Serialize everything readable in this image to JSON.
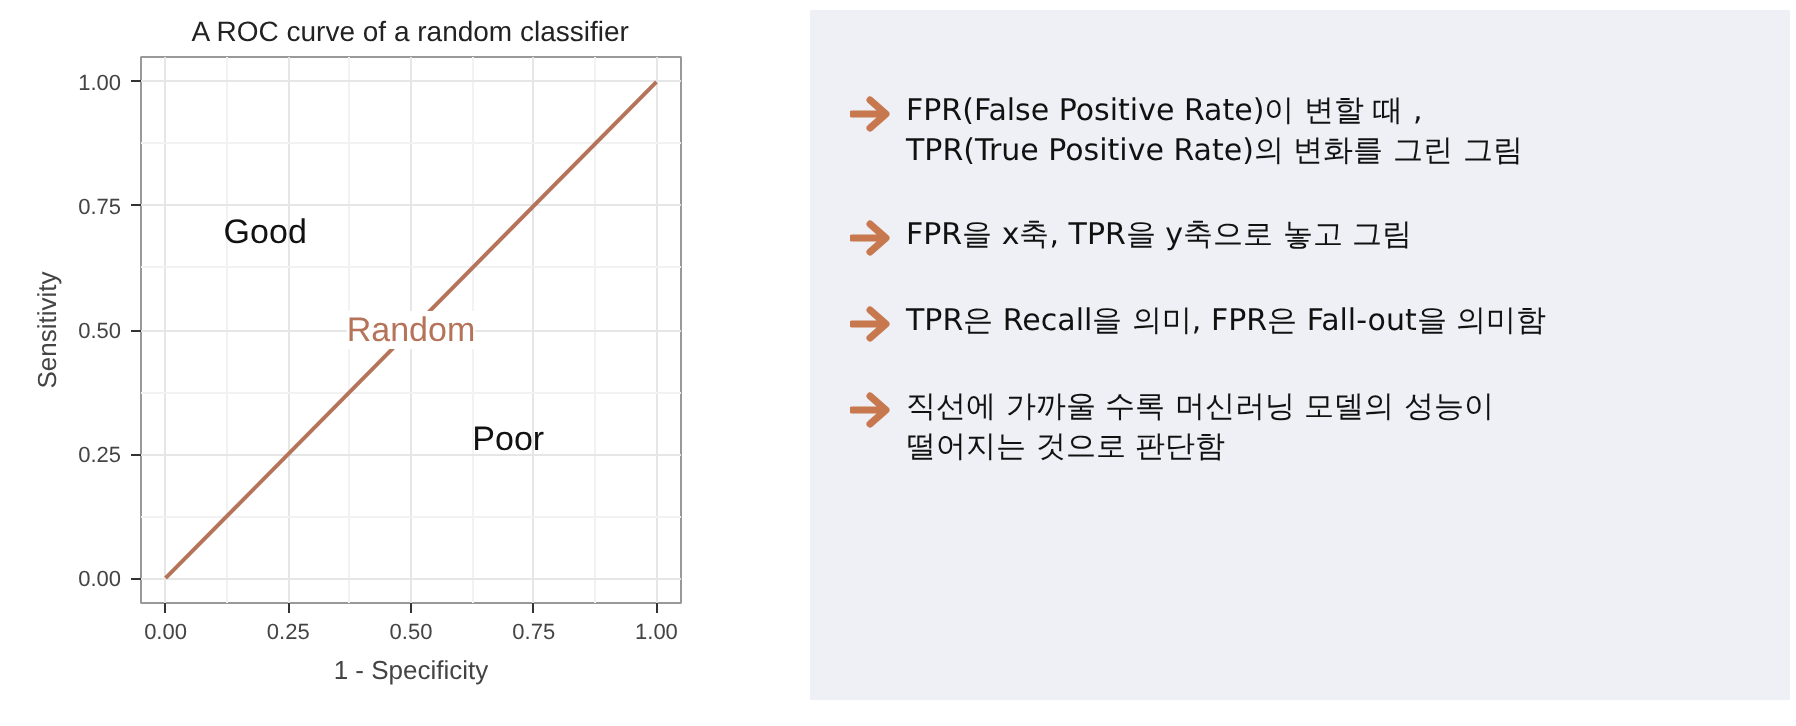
{
  "chart_data": [
    {
      "type": "line",
      "title": "A ROC curve of a random classifier",
      "xlabel": "1 - Specificity",
      "ylabel": "Sensitivity",
      "x": [
        0,
        1
      ],
      "series": [
        {
          "name": "Random",
          "color": "#b5735a",
          "values": [
            0,
            1
          ]
        }
      ],
      "xlim": [
        -0.05,
        1.05
      ],
      "ylim": [
        -0.05,
        1.05
      ],
      "xticks": [
        {
          "value": 0,
          "label": "0.00"
        },
        0.25,
        {
          "value": 0.5,
          "label": "0.50"
        },
        0.75,
        {
          "value": 1,
          "label": "1.00"
        }
      ],
      "yticks": [
        {
          "value": 0,
          "label": "0.00"
        },
        0.25,
        {
          "value": 0.5,
          "label": "0.50"
        },
        0.75,
        {
          "value": 1,
          "label": "1.00"
        }
      ],
      "annotations": [
        "Good",
        "Poor"
      ],
      "grid": true
    },
    {
      "type": "other",
      "annotations": [
        "FPR(False Positive Rate)이 변할 때 ,\nTPR(True Positive Rate)의 변화를 그린 그림",
        "FPR을 x축, TPR을 y축으로 놓고 그림",
        "TPR은 Recall을 의미, FPR은 Fall-out을 의미함",
        "직선에 가까울 수록 머신러닝 모델의 성능이\n떨어지는 것으로 판단함"
      ]
    }
  ]
}
